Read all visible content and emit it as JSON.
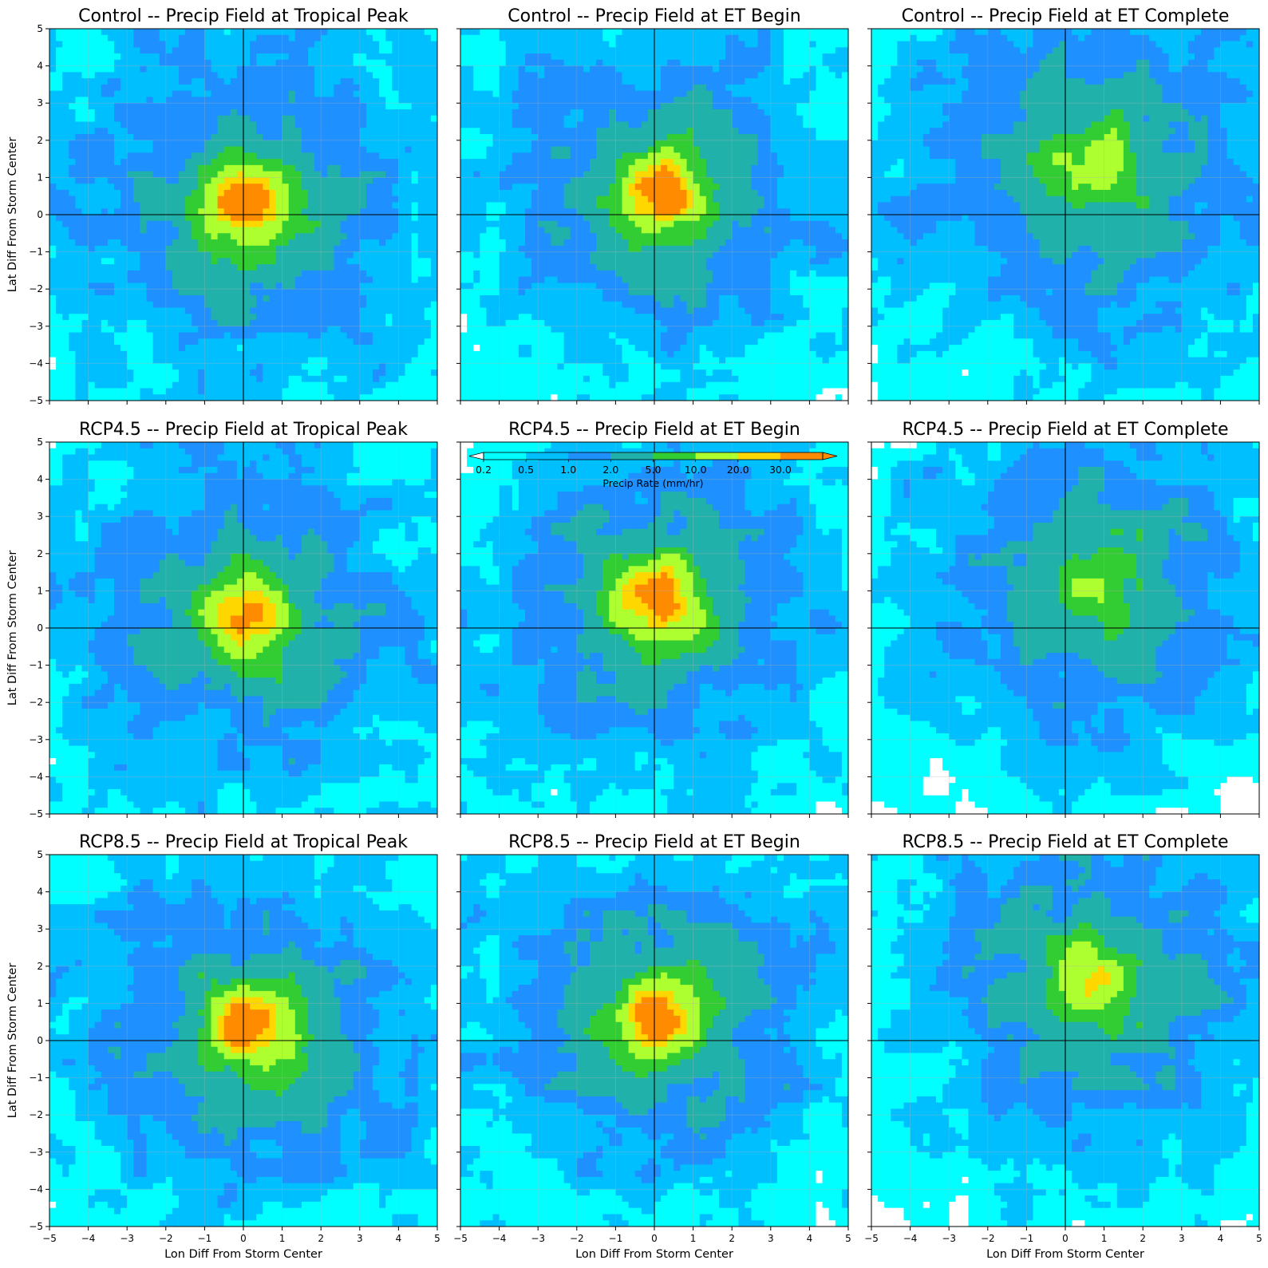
{
  "chart_data": {
    "type": "heatmap",
    "layout": "3x3 grid of contour maps",
    "xlabel": "Lon Diff From Storm Center",
    "ylabel": "Lat Diff From Storm Center",
    "xlim": [
      -5,
      5
    ],
    "ylim": [
      -5,
      5
    ],
    "ticks": [
      -5,
      -4,
      -3,
      -2,
      -1,
      0,
      1,
      2,
      3,
      4,
      5
    ],
    "grid": true,
    "crosshair_at": [
      0,
      0
    ],
    "colorbar": {
      "label": "Precip Rate (mm/hr)",
      "levels": [
        0.2,
        0.5,
        1.0,
        2.0,
        5.0,
        10.0,
        20.0,
        30.0
      ],
      "level_labels": [
        "0.2",
        "0.5",
        "1.0",
        "2.0",
        "5.0",
        "10.0",
        "20.0",
        "30.0"
      ],
      "colors": [
        "#00ffff",
        "#00bfff",
        "#1e90ff",
        "#20b2aa",
        "#32cd32",
        "#adff2f",
        "#ffd700",
        "#ff8c00"
      ],
      "below_color": "#ffffff",
      "extend": "both",
      "placement": "inside top of center panel"
    },
    "panels": [
      {
        "title": "Control -- Precip Field at Tropical Peak",
        "peak_center": [
          0.1,
          0.3
        ],
        "peak_rate": 30.0
      },
      {
        "title": "Control -- Precip Field at ET Begin",
        "peak_center": [
          0.1,
          0.6
        ],
        "peak_rate": 30.0
      },
      {
        "title": "Control -- Precip Field at ET Complete",
        "peak_center": [
          0.7,
          1.3
        ],
        "peak_rate": 10.0
      },
      {
        "title": "RCP4.5 -- Precip Field at Tropical Peak",
        "peak_center": [
          0.1,
          0.3
        ],
        "peak_rate": 30.0
      },
      {
        "title": "RCP4.5 -- Precip Field at ET Begin",
        "peak_center": [
          0.1,
          0.7
        ],
        "peak_rate": 30.0
      },
      {
        "title": "RCP4.5 -- Precip Field at ET Complete",
        "peak_center": [
          0.7,
          1.2
        ],
        "peak_rate": 5.0
      },
      {
        "title": "RCP8.5 -- Precip Field at Tropical Peak",
        "peak_center": [
          0.1,
          0.3
        ],
        "peak_rate": 30.0
      },
      {
        "title": "RCP8.5 -- Precip Field at ET Begin",
        "peak_center": [
          0.1,
          0.6
        ],
        "peak_rate": 30.0
      },
      {
        "title": "RCP8.5 -- Precip Field at ET Complete",
        "peak_center": [
          0.7,
          1.6
        ],
        "peak_rate": 10.0
      }
    ]
  }
}
